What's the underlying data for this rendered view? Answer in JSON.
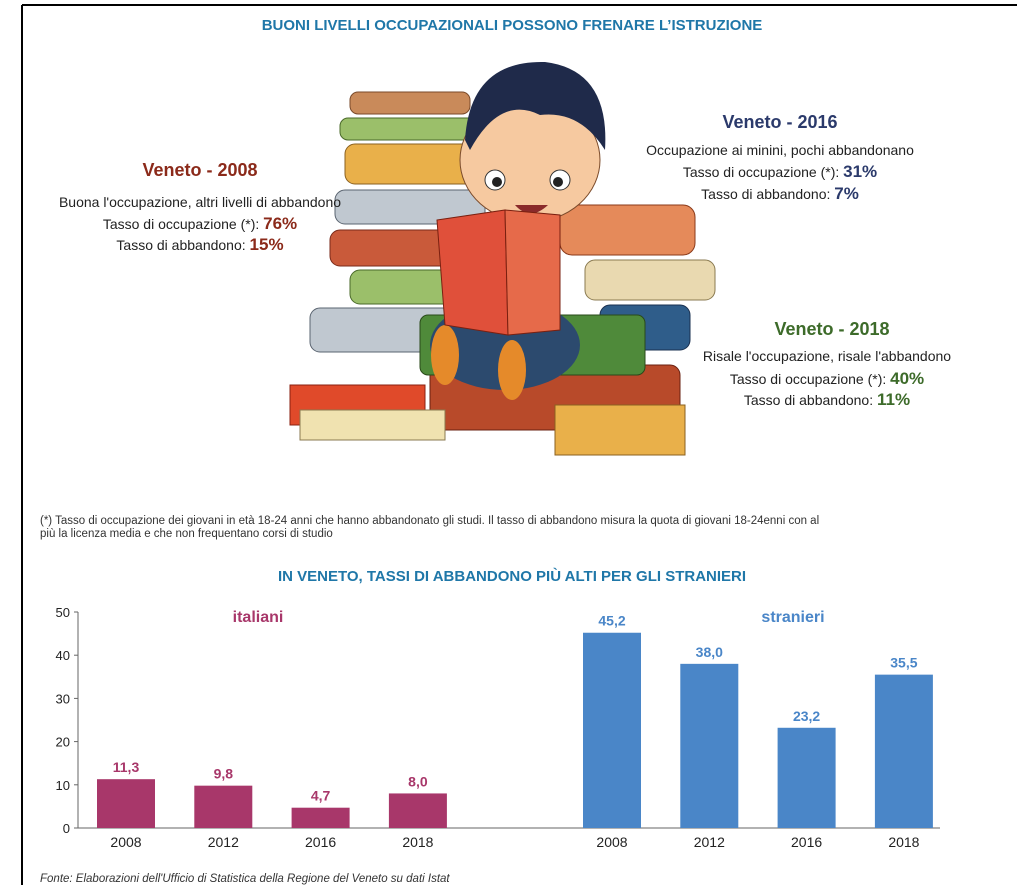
{
  "header": {
    "title": "BUONI LIVELLI OCCUPAZIONALI POSSONO FRENARE L’ISTRUZIONE"
  },
  "blocks": [
    {
      "heading": "Veneto - 2008",
      "description": "Buona l'occupazione, altri livelli di abbandono",
      "occupation_label": "Tasso di occupazione (*):",
      "occupation_value": "76%",
      "dropout_label": "Tasso di abbandono:",
      "dropout_value": "15%"
    },
    {
      "heading": "Veneto - 2016",
      "description": "Occupazione ai minini, pochi abbandonano",
      "occupation_label": "Tasso di occupazione (*):",
      "occupation_value": "31%",
      "dropout_label": "Tasso di abbandono:",
      "dropout_value": "7%"
    },
    {
      "heading": "Veneto - 2018",
      "description": "Risale l'occupazione, risale l'abbandono",
      "occupation_label": "Tasso di occupazione (*):",
      "occupation_value": "40%",
      "dropout_label": "Tasso di abbandono:",
      "dropout_value": "11%"
    }
  ],
  "footnote": [
    "(*) Tasso di occupazione dei giovani in età 18-24 anni che hanno abbandonato gli studi. Il tasso di abbandono misura la quota di giovani 18-24enni con al",
    "più la licenza media e che non frequentano corsi di studio"
  ],
  "chart_data": {
    "type": "bar",
    "title": "IN VENETO, TASSI DI ABBANDONO PIÙ ALTI PER GLI STRANIERI",
    "categories": [
      "2008",
      "2012",
      "2016",
      "2018"
    ],
    "series": [
      {
        "name": "italiani",
        "color": "#a8376a",
        "values": [
          11.3,
          9.8,
          4.7,
          8.0
        ],
        "value_labels": [
          "11,3",
          "9,8",
          "4,7",
          "8,0"
        ]
      },
      {
        "name": "stranieri",
        "color": "#4a86c8",
        "values": [
          45.2,
          38.0,
          23.2,
          35.5
        ],
        "value_labels": [
          "45,2",
          "38,0",
          "23,2",
          "35,5"
        ]
      }
    ],
    "ylim": [
      0,
      50
    ],
    "yticks": [
      0,
      10,
      20,
      30,
      40,
      50
    ]
  },
  "source": "Fonte: Elaborazioni dell'Ufficio di Statistica della Regione del Veneto su dati Istat"
}
